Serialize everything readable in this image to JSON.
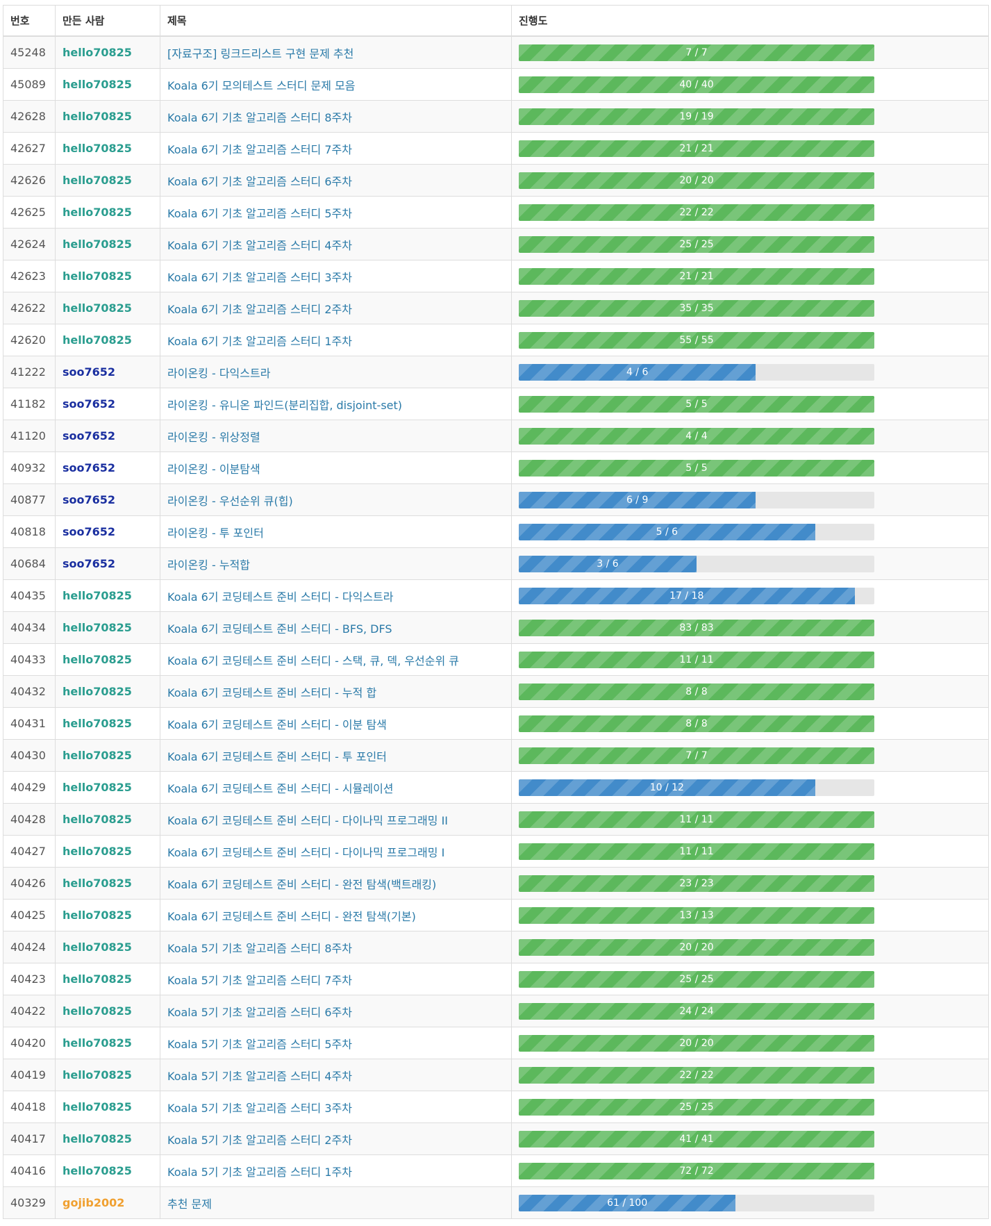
{
  "headers": {
    "num": "번호",
    "creator": "만든 사람",
    "title": "제목",
    "progress": "진행도"
  },
  "colors": {
    "green": "#2a9d8f",
    "navy": "#1a2fa0",
    "orange": "#f0a030",
    "done": "#5cb85c",
    "partial": "#428bca"
  },
  "rows": [
    {
      "num": "45248",
      "user": "hello70825",
      "user_color": "#2a9d8f",
      "title": "[자료구조] 링크드리스트 구현 문제 추천",
      "solved": 7,
      "total": 7,
      "progress": "7 / 7"
    },
    {
      "num": "45089",
      "user": "hello70825",
      "user_color": "#2a9d8f",
      "title": "Koala 6기 모의테스트 스터디 문제 모음",
      "solved": 40,
      "total": 40,
      "progress": "40 / 40"
    },
    {
      "num": "42628",
      "user": "hello70825",
      "user_color": "#2a9d8f",
      "title": "Koala 6기 기초 알고리즘 스터디 8주차",
      "solved": 19,
      "total": 19,
      "progress": "19 / 19"
    },
    {
      "num": "42627",
      "user": "hello70825",
      "user_color": "#2a9d8f",
      "title": "Koala 6기 기초 알고리즘 스터디 7주차",
      "solved": 21,
      "total": 21,
      "progress": "21 / 21"
    },
    {
      "num": "42626",
      "user": "hello70825",
      "user_color": "#2a9d8f",
      "title": "Koala 6기 기초 알고리즘 스터디 6주차",
      "solved": 20,
      "total": 20,
      "progress": "20 / 20"
    },
    {
      "num": "42625",
      "user": "hello70825",
      "user_color": "#2a9d8f",
      "title": "Koala 6기 기초 알고리즘 스터디 5주차",
      "solved": 22,
      "total": 22,
      "progress": "22 / 22"
    },
    {
      "num": "42624",
      "user": "hello70825",
      "user_color": "#2a9d8f",
      "title": "Koala 6기 기초 알고리즘 스터디 4주차",
      "solved": 25,
      "total": 25,
      "progress": "25 / 25"
    },
    {
      "num": "42623",
      "user": "hello70825",
      "user_color": "#2a9d8f",
      "title": "Koala 6기 기초 알고리즘 스터디 3주차",
      "solved": 21,
      "total": 21,
      "progress": "21 / 21"
    },
    {
      "num": "42622",
      "user": "hello70825",
      "user_color": "#2a9d8f",
      "title": "Koala 6기 기초 알고리즘 스터디 2주차",
      "solved": 35,
      "total": 35,
      "progress": "35 / 35"
    },
    {
      "num": "42620",
      "user": "hello70825",
      "user_color": "#2a9d8f",
      "title": "Koala 6기 기초 알고리즘 스터디 1주차",
      "solved": 55,
      "total": 55,
      "progress": "55 / 55"
    },
    {
      "num": "41222",
      "user": "soo7652",
      "user_color": "#1a2fa0",
      "title": "라이온킹 - 다익스트라",
      "solved": 4,
      "total": 6,
      "progress": "4 / 6"
    },
    {
      "num": "41182",
      "user": "soo7652",
      "user_color": "#1a2fa0",
      "title": "라이온킹 - 유니온 파인드(분리집합, disjoint-set)",
      "solved": 5,
      "total": 5,
      "progress": "5 / 5"
    },
    {
      "num": "41120",
      "user": "soo7652",
      "user_color": "#1a2fa0",
      "title": "라이온킹 - 위상정렬",
      "solved": 4,
      "total": 4,
      "progress": "4 / 4"
    },
    {
      "num": "40932",
      "user": "soo7652",
      "user_color": "#1a2fa0",
      "title": "라이온킹 - 이분탐색",
      "solved": 5,
      "total": 5,
      "progress": "5 / 5"
    },
    {
      "num": "40877",
      "user": "soo7652",
      "user_color": "#1a2fa0",
      "title": "라이온킹 - 우선순위 큐(힙)",
      "solved": 6,
      "total": 9,
      "progress": "6 / 9"
    },
    {
      "num": "40818",
      "user": "soo7652",
      "user_color": "#1a2fa0",
      "title": "라이온킹 - 투 포인터",
      "solved": 5,
      "total": 6,
      "progress": "5 / 6"
    },
    {
      "num": "40684",
      "user": "soo7652",
      "user_color": "#1a2fa0",
      "title": "라이온킹 - 누적합",
      "solved": 3,
      "total": 6,
      "progress": "3 / 6"
    },
    {
      "num": "40435",
      "user": "hello70825",
      "user_color": "#2a9d8f",
      "title": "Koala 6기 코딩테스트 준비 스터디 - 다익스트라",
      "solved": 17,
      "total": 18,
      "progress": "17 / 18"
    },
    {
      "num": "40434",
      "user": "hello70825",
      "user_color": "#2a9d8f",
      "title": "Koala 6기 코딩테스트 준비 스터디 - BFS, DFS",
      "solved": 83,
      "total": 83,
      "progress": "83 / 83"
    },
    {
      "num": "40433",
      "user": "hello70825",
      "user_color": "#2a9d8f",
      "title": "Koala 6기 코딩테스트 준비 스터디 - 스택, 큐, 덱, 우선순위 큐",
      "solved": 11,
      "total": 11,
      "progress": "11 / 11"
    },
    {
      "num": "40432",
      "user": "hello70825",
      "user_color": "#2a9d8f",
      "title": "Koala 6기 코딩테스트 준비 스터디 - 누적 합",
      "solved": 8,
      "total": 8,
      "progress": "8 / 8"
    },
    {
      "num": "40431",
      "user": "hello70825",
      "user_color": "#2a9d8f",
      "title": "Koala 6기 코딩테스트 준비 스터디 - 이분 탐색",
      "solved": 8,
      "total": 8,
      "progress": "8 / 8"
    },
    {
      "num": "40430",
      "user": "hello70825",
      "user_color": "#2a9d8f",
      "title": "Koala 6기 코딩테스트 준비 스터디 - 투 포인터",
      "solved": 7,
      "total": 7,
      "progress": "7 / 7"
    },
    {
      "num": "40429",
      "user": "hello70825",
      "user_color": "#2a9d8f",
      "title": "Koala 6기 코딩테스트 준비 스터디 - 시뮬레이션",
      "solved": 10,
      "total": 12,
      "progress": "10 / 12"
    },
    {
      "num": "40428",
      "user": "hello70825",
      "user_color": "#2a9d8f",
      "title": "Koala 6기 코딩테스트 준비 스터디 - 다이나믹 프로그래밍 II",
      "solved": 11,
      "total": 11,
      "progress": "11 / 11"
    },
    {
      "num": "40427",
      "user": "hello70825",
      "user_color": "#2a9d8f",
      "title": "Koala 6기 코딩테스트 준비 스터디 - 다이나믹 프로그래밍 I",
      "solved": 11,
      "total": 11,
      "progress": "11 / 11"
    },
    {
      "num": "40426",
      "user": "hello70825",
      "user_color": "#2a9d8f",
      "title": "Koala 6기 코딩테스트 준비 스터디 - 완전 탐색(백트래킹)",
      "solved": 23,
      "total": 23,
      "progress": "23 / 23"
    },
    {
      "num": "40425",
      "user": "hello70825",
      "user_color": "#2a9d8f",
      "title": "Koala 6기 코딩테스트 준비 스터디 - 완전 탐색(기본)",
      "solved": 13,
      "total": 13,
      "progress": "13 / 13"
    },
    {
      "num": "40424",
      "user": "hello70825",
      "user_color": "#2a9d8f",
      "title": "Koala 5기 기초 알고리즘 스터디 8주차",
      "solved": 20,
      "total": 20,
      "progress": "20 / 20"
    },
    {
      "num": "40423",
      "user": "hello70825",
      "user_color": "#2a9d8f",
      "title": "Koala 5기 기초 알고리즘 스터디 7주차",
      "solved": 25,
      "total": 25,
      "progress": "25 / 25"
    },
    {
      "num": "40422",
      "user": "hello70825",
      "user_color": "#2a9d8f",
      "title": "Koala 5기 기초 알고리즘 스터디 6주차",
      "solved": 24,
      "total": 24,
      "progress": "24 / 24"
    },
    {
      "num": "40420",
      "user": "hello70825",
      "user_color": "#2a9d8f",
      "title": "Koala 5기 기초 알고리즘 스터디 5주차",
      "solved": 20,
      "total": 20,
      "progress": "20 / 20"
    },
    {
      "num": "40419",
      "user": "hello70825",
      "user_color": "#2a9d8f",
      "title": "Koala 5기 기초 알고리즘 스터디 4주차",
      "solved": 22,
      "total": 22,
      "progress": "22 / 22"
    },
    {
      "num": "40418",
      "user": "hello70825",
      "user_color": "#2a9d8f",
      "title": "Koala 5기 기초 알고리즘 스터디 3주차",
      "solved": 25,
      "total": 25,
      "progress": "25 / 25"
    },
    {
      "num": "40417",
      "user": "hello70825",
      "user_color": "#2a9d8f",
      "title": "Koala 5기 기초 알고리즘 스터디 2주차",
      "solved": 41,
      "total": 41,
      "progress": "41 / 41"
    },
    {
      "num": "40416",
      "user": "hello70825",
      "user_color": "#2a9d8f",
      "title": "Koala 5기 기초 알고리즘 스터디 1주차",
      "solved": 72,
      "total": 72,
      "progress": "72 / 72"
    },
    {
      "num": "40329",
      "user": "gojib2002",
      "user_color": "#f0a030",
      "title": "추천 문제",
      "solved": 61,
      "total": 100,
      "progress": "61 / 100"
    }
  ]
}
